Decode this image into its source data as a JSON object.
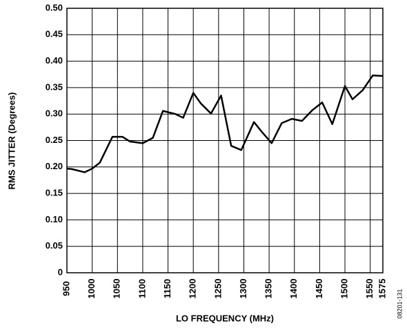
{
  "chart_data": {
    "type": "line",
    "xlabel": "LO FREQUENCY (MHz)",
    "ylabel": "RMS JITTER (Degrees)",
    "annotation": "08201-131",
    "x": [
      950,
      960,
      985,
      1000,
      1015,
      1040,
      1060,
      1075,
      1100,
      1120,
      1140,
      1165,
      1180,
      1200,
      1215,
      1235,
      1255,
      1275,
      1295,
      1320,
      1335,
      1355,
      1375,
      1395,
      1415,
      1435,
      1455,
      1475,
      1500,
      1515,
      1535,
      1555,
      1575
    ],
    "series": [
      {
        "color": "#000000",
        "values": [
          0.197,
          0.196,
          0.19,
          0.197,
          0.208,
          0.257,
          0.257,
          0.248,
          0.245,
          0.255,
          0.306,
          0.3,
          0.293,
          0.34,
          0.32,
          0.301,
          0.335,
          0.24,
          0.232,
          0.285,
          0.267,
          0.245,
          0.283,
          0.291,
          0.287,
          0.307,
          0.322,
          0.281,
          0.353,
          0.328,
          0.345,
          0.373,
          0.372
        ]
      }
    ],
    "xlim": [
      950,
      1575
    ],
    "xticks": [
      950,
      1000,
      1050,
      1100,
      1150,
      1200,
      1250,
      1300,
      1350,
      1400,
      1450,
      1500,
      1550,
      1575
    ],
    "ylim": [
      0,
      0.5
    ],
    "yticks": [
      0,
      0.05,
      {
        "value": 0.1,
        "label": "0.10"
      },
      0.15,
      {
        "value": 0.2,
        "label": "0.20"
      },
      0.25,
      {
        "value": 0.3,
        "label": "0.30"
      },
      0.35,
      {
        "value": 0.4,
        "label": "0.40"
      },
      0.45,
      {
        "value": 0.5,
        "label": "0.50"
      }
    ],
    "grid": true
  }
}
